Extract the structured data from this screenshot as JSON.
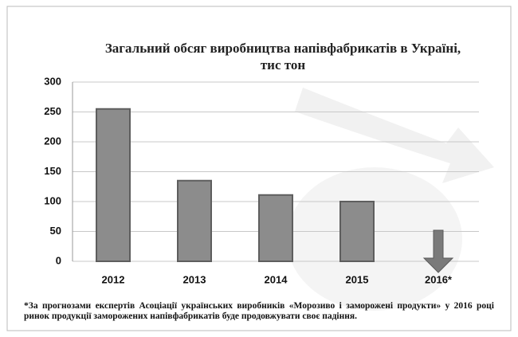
{
  "chart_data": {
    "type": "bar",
    "title": "Загальний обсяг виробництва напівфабрикатів в Україні, тис тон",
    "categories": [
      "2012",
      "2013",
      "2014",
      "2015",
      "2016*"
    ],
    "values": [
      255,
      135,
      111,
      100,
      52
    ],
    "color": "#8c8c8c",
    "ylim": [
      0,
      300
    ],
    "yticks": [
      0,
      50,
      100,
      150,
      200,
      250,
      300
    ],
    "grid": true,
    "footnote": "*За прогнозами експертів Асоціації українських виробників «Морозиво і заморожені продукти» у 2016 році ринок продукції заморожених напівфабрикатів буде продовжувати своє падіння."
  }
}
